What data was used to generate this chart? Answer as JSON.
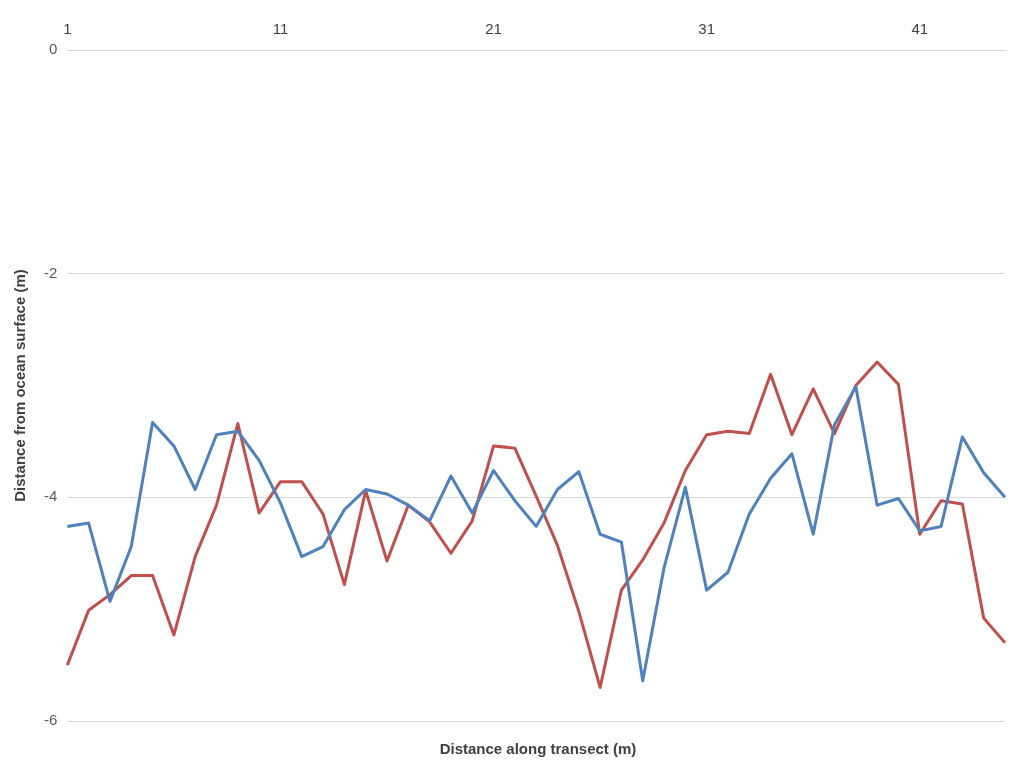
{
  "chart_data": {
    "type": "line",
    "xlabel": "Distance along transect (m)",
    "ylabel": "Distance from ocean surface (m)",
    "categories": [
      "1",
      null,
      null,
      null,
      null,
      null,
      null,
      null,
      null,
      null,
      "11",
      null,
      null,
      null,
      null,
      null,
      null,
      null,
      null,
      null,
      "21",
      null,
      null,
      null,
      null,
      null,
      null,
      null,
      null,
      null,
      "31",
      null,
      null,
      null,
      null,
      null,
      null,
      null,
      null,
      null,
      "41",
      null,
      null,
      null,
      null
    ],
    "series": [
      {
        "color": "#4f81bd",
        "values": [
          -4.26,
          -4.23,
          -4.93,
          -4.44,
          -3.33,
          -3.54,
          -3.93,
          -3.44,
          -3.41,
          -3.67,
          -4.05,
          -4.53,
          -4.44,
          -4.11,
          -3.93,
          -3.97,
          -4.07,
          -4.21,
          -3.81,
          -4.14,
          -3.76,
          -4.03,
          -4.26,
          -3.93,
          -3.77,
          -4.33,
          -4.4,
          -5.64,
          -4.63,
          -3.91,
          -4.83,
          -4.67,
          -4.15,
          -3.83,
          -3.61,
          -4.33,
          -3.35,
          -3.01,
          -4.07,
          -4.01,
          -4.3,
          -4.26,
          -3.46,
          -3.78,
          -4.0
        ]
      },
      {
        "color": "#c0504d",
        "values": [
          -5.5,
          -5.01,
          -4.87,
          -4.7,
          -4.7,
          -5.23,
          -4.53,
          -4.07,
          -3.34,
          -4.14,
          -3.86,
          -3.86,
          -4.15,
          -4.78,
          -3.94,
          -4.57,
          -4.07,
          -4.22,
          -4.5,
          -4.21,
          -3.54,
          -3.56,
          -3.99,
          -4.43,
          -5.02,
          -5.7,
          -4.83,
          -4.56,
          -4.23,
          -3.76,
          -3.44,
          -3.41,
          -3.43,
          -2.9,
          -3.44,
          -3.03,
          -3.43,
          -3.0,
          -2.79,
          -2.99,
          -4.33,
          -4.03,
          -4.06,
          -5.08,
          -5.3
        ]
      }
    ],
    "ylim": [
      -6,
      0
    ],
    "yticks": [
      -6,
      -4,
      -2,
      0
    ],
    "grid": "y",
    "legend": false,
    "marker": "none",
    "line_style": "solid"
  }
}
